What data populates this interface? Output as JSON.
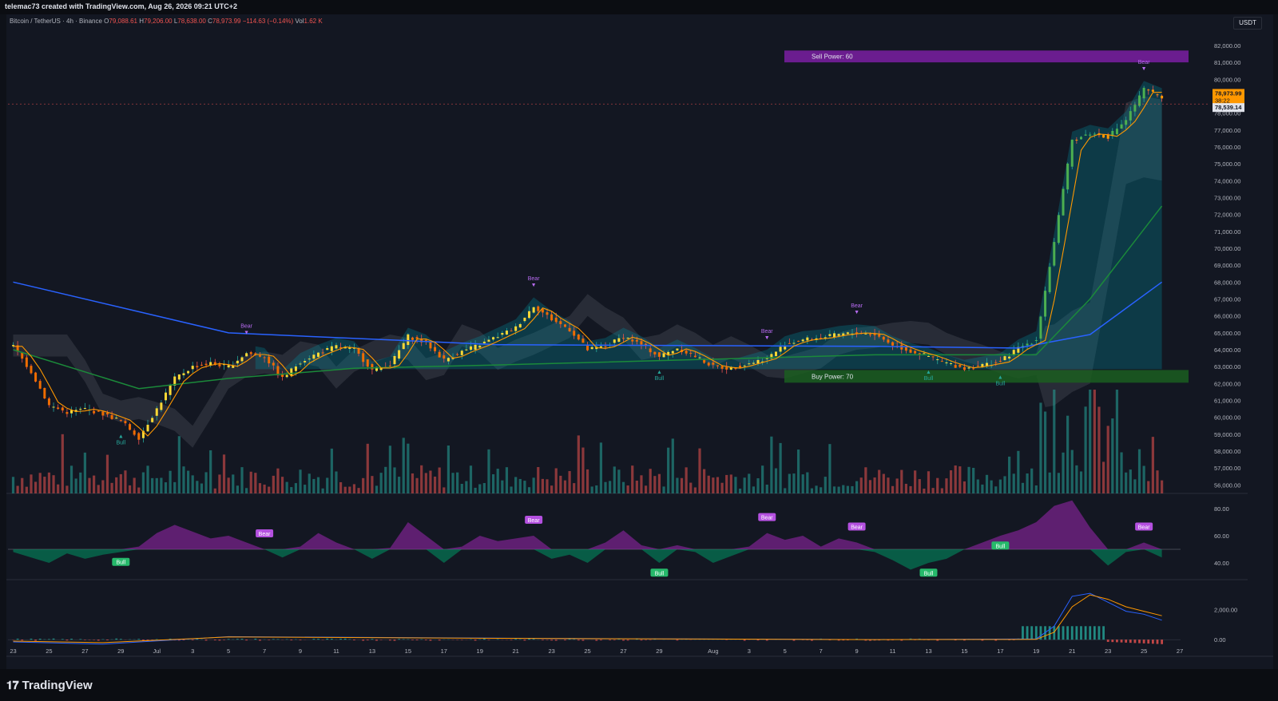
{
  "header": {
    "attribution": "telemac73 created with TradingView.com, Aug 26, 2026 09:21 UTC+2"
  },
  "symbol": {
    "name": "Bitcoin / TetherUS · 4h · Binance",
    "o_label": "O",
    "o": "79,088.61",
    "h_label": "H",
    "h": "79,206.00",
    "l_label": "L",
    "l": "78,638.00",
    "c_label": "C",
    "c": "78,973.99",
    "change": "−114.63 (−0.14%)",
    "vol_label": "Vol",
    "vol": "1.62 K"
  },
  "currency_button": "USDT",
  "brand": "TradingView",
  "chart_data": [
    {
      "type": "candlestick",
      "title": "Bitcoin / TetherUS · 4h · Binance",
      "ylim": [
        55500,
        82800
      ],
      "y_ticks": [
        "82,000.00",
        "81,000.00",
        "80,000.00",
        "79,000.00",
        "78,000.00",
        "77,000.00",
        "76,000.00",
        "75,000.00",
        "74,000.00",
        "73,000.00",
        "72,000.00",
        "71,000.00",
        "70,000.00",
        "69,000.00",
        "68,000.00",
        "67,000.00",
        "66,000.00",
        "65,000.00",
        "64,000.00",
        "63,000.00",
        "62,000.00",
        "61,000.00",
        "60,000.00",
        "59,000.00",
        "58,000.00",
        "57,000.00",
        "56,000.00"
      ],
      "x_ticks": [
        "23",
        "25",
        "27",
        "29",
        "Jul",
        "3",
        "5",
        "7",
        "9",
        "11",
        "13",
        "15",
        "17",
        "19",
        "21",
        "23",
        "25",
        "27",
        "29",
        "Aug",
        "3",
        "5",
        "7",
        "9",
        "11",
        "13",
        "15",
        "17",
        "19",
        "21",
        "23",
        "25",
        "27"
      ],
      "close_path": [
        [
          "Jun 23",
          64200
        ],
        [
          "Jun 24",
          62700
        ],
        [
          "Jun 25",
          60700
        ],
        [
          "Jun 26",
          60300
        ],
        [
          "Jun 27",
          60500
        ],
        [
          "Jun 28",
          60200
        ],
        [
          "Jun 29",
          59800
        ],
        [
          "Jun 30",
          58800
        ],
        [
          "Jul 1",
          60500
        ],
        [
          "Jul 2",
          62300
        ],
        [
          "Jul 3",
          63000
        ],
        [
          "Jul 4",
          63200
        ],
        [
          "Jul 5",
          63000
        ],
        [
          "Jul 6",
          63800
        ],
        [
          "Jul 7",
          63600
        ],
        [
          "Jul 8",
          62300
        ],
        [
          "Jul 9",
          63300
        ],
        [
          "Jul 10",
          63800
        ],
        [
          "Jul 11",
          64200
        ],
        [
          "Jul 12",
          64000
        ],
        [
          "Jul 13",
          62800
        ],
        [
          "Jul 14",
          63100
        ],
        [
          "Jul 15",
          64800
        ],
        [
          "Jul 16",
          64400
        ],
        [
          "Jul 17",
          63400
        ],
        [
          "Jul 18",
          63900
        ],
        [
          "Jul 19",
          64300
        ],
        [
          "Jul 20",
          64800
        ],
        [
          "Jul 21",
          65300
        ],
        [
          "Jul 22",
          66600
        ],
        [
          "Jul 23",
          65800
        ],
        [
          "Jul 24",
          65200
        ],
        [
          "Jul 25",
          64000
        ],
        [
          "Jul 26",
          64200
        ],
        [
          "Jul 27",
          64800
        ],
        [
          "Jul 28",
          64300
        ],
        [
          "Jul 29",
          63600
        ],
        [
          "Jul 30",
          64100
        ],
        [
          "Jul 31",
          63600
        ],
        [
          "Aug 1",
          63000
        ],
        [
          "Aug 2",
          62900
        ],
        [
          "Aug 3",
          63200
        ],
        [
          "Aug 4",
          63500
        ],
        [
          "Aug 5",
          64300
        ],
        [
          "Aug 6",
          64600
        ],
        [
          "Aug 7",
          64700
        ],
        [
          "Aug 8",
          64900
        ],
        [
          "Aug 9",
          65000
        ],
        [
          "Aug 10",
          64900
        ],
        [
          "Aug 11",
          64300
        ],
        [
          "Aug 12",
          63900
        ],
        [
          "Aug 13",
          63600
        ],
        [
          "Aug 14",
          63200
        ],
        [
          "Aug 15",
          62900
        ],
        [
          "Aug 16",
          63100
        ],
        [
          "Aug 17",
          63300
        ],
        [
          "Aug 18",
          64100
        ],
        [
          "Aug 19",
          64600
        ],
        [
          "Aug 20",
          70400
        ],
        [
          "Aug 21",
          76400
        ],
        [
          "Aug 22",
          76800
        ],
        [
          "Aug 23",
          76600
        ],
        [
          "Aug 24",
          77600
        ],
        [
          "Aug 25",
          79400
        ],
        [
          "Aug 26",
          78974
        ]
      ],
      "moving_averages": [
        {
          "name": "blue MA",
          "color": "#2962ff",
          "points": [
            [
              "Jun 23",
              68000
            ],
            [
              "Jul 5",
              65000
            ],
            [
              "Jul 20",
              64300
            ],
            [
              "Aug 10",
              64200
            ],
            [
              "Aug 18",
              64100
            ],
            [
              "Aug 22",
              64900
            ],
            [
              "Aug 26",
              68000
            ]
          ]
        },
        {
          "name": "green MA",
          "color": "#1b8a3a",
          "points": [
            [
              "Jun 23",
              64000
            ],
            [
              "Jun 30",
              61700
            ],
            [
              "Jul 5",
              62300
            ],
            [
              "Jul 12",
              62900
            ],
            [
              "Jul 20",
              63100
            ],
            [
              "Aug 10",
              63700
            ],
            [
              "Aug 19",
              63700
            ],
            [
              "Aug 22",
              67000
            ],
            [
              "Aug 26",
              72500
            ]
          ]
        }
      ],
      "last_price": "78,973.99",
      "countdown": "38:22",
      "marker_price": "78,539.14",
      "zones": [
        {
          "label": "Sell Power: 60",
          "from": 81000,
          "to": 81700,
          "color": "#7b1fa2"
        },
        {
          "label": "Buy Power: 70",
          "from": 62050,
          "to": 62800,
          "color": "#1b5e20"
        }
      ],
      "signals": [
        {
          "label": "Bear",
          "at": "Jul 6"
        },
        {
          "label": "Bear",
          "at": "Jul 22"
        },
        {
          "label": "Bear",
          "at": "Aug 4"
        },
        {
          "label": "Bear",
          "at": "Aug 9"
        },
        {
          "label": "Bear",
          "at": "Aug 25"
        },
        {
          "label": "Bull",
          "at": "Jun 29"
        },
        {
          "label": "Bull",
          "at": "Jul 29"
        },
        {
          "label": "Bull",
          "at": "Aug 13"
        },
        {
          "label": "Bull",
          "at": "Aug 17"
        }
      ]
    },
    {
      "type": "area",
      "title": "",
      "ylim": [
        30,
        90
      ],
      "y_ticks": [
        "80.00",
        "60.00",
        "40.00"
      ],
      "baseline": 50,
      "points": [
        [
          "Jun 23",
          48
        ],
        [
          "Jun 24",
          44
        ],
        [
          "Jun 25",
          40
        ],
        [
          "Jun 26",
          47
        ],
        [
          "Jun 27",
          43
        ],
        [
          "Jun 28",
          46
        ],
        [
          "Jun 29",
          48
        ],
        [
          "Jun 30",
          52
        ],
        [
          "Jul 1",
          62
        ],
        [
          "Jul 2",
          68
        ],
        [
          "Jul 3",
          63
        ],
        [
          "Jul 4",
          58
        ],
        [
          "Jul 5",
          60
        ],
        [
          "Jul 6",
          55
        ],
        [
          "Jul 7",
          50
        ],
        [
          "Jul 8",
          44
        ],
        [
          "Jul 9",
          52
        ],
        [
          "Jul 10",
          62
        ],
        [
          "Jul 11",
          55
        ],
        [
          "Jul 12",
          50
        ],
        [
          "Jul 13",
          43
        ],
        [
          "Jul 14",
          51
        ],
        [
          "Jul 15",
          70
        ],
        [
          "Jul 16",
          60
        ],
        [
          "Jul 17",
          40
        ],
        [
          "Jul 18",
          52
        ],
        [
          "Jul 19",
          60
        ],
        [
          "Jul 20",
          56
        ],
        [
          "Jul 21",
          58
        ],
        [
          "Jul 22",
          60
        ],
        [
          "Jul 23",
          43
        ],
        [
          "Jul 24",
          46
        ],
        [
          "Jul 25",
          40
        ],
        [
          "Jul 26",
          55
        ],
        [
          "Jul 27",
          64
        ],
        [
          "Jul 28",
          53
        ],
        [
          "Jul 29",
          40
        ],
        [
          "Jul 30",
          53
        ],
        [
          "Jul 31",
          48
        ],
        [
          "Aug 1",
          40
        ],
        [
          "Aug 2",
          45
        ],
        [
          "Aug 3",
          52
        ],
        [
          "Aug 4",
          62
        ],
        [
          "Aug 5",
          57
        ],
        [
          "Aug 6",
          60
        ],
        [
          "Aug 7",
          52
        ],
        [
          "Aug 8",
          58
        ],
        [
          "Aug 9",
          55
        ],
        [
          "Aug 10",
          48
        ],
        [
          "Aug 11",
          42
        ],
        [
          "Aug 12",
          35
        ],
        [
          "Aug 13",
          40
        ],
        [
          "Aug 14",
          43
        ],
        [
          "Aug 15",
          50
        ],
        [
          "Aug 16",
          55
        ],
        [
          "Aug 17",
          60
        ],
        [
          "Aug 18",
          64
        ],
        [
          "Aug 19",
          70
        ],
        [
          "Aug 20",
          82
        ],
        [
          "Aug 21",
          86
        ],
        [
          "Aug 22",
          66
        ],
        [
          "Aug 23",
          38
        ],
        [
          "Aug 24",
          48
        ],
        [
          "Aug 25",
          55
        ],
        [
          "Aug 26",
          44
        ]
      ],
      "signals": [
        {
          "label": "Bull",
          "at": "Jun 29"
        },
        {
          "label": "Bear",
          "at": "Jul 7"
        },
        {
          "label": "Bear",
          "at": "Jul 22"
        },
        {
          "label": "Bull",
          "at": "Jul 29"
        },
        {
          "label": "Bear",
          "at": "Aug 4"
        },
        {
          "label": "Bear",
          "at": "Aug 9"
        },
        {
          "label": "Bull",
          "at": "Aug 13"
        },
        {
          "label": "Bull",
          "at": "Aug 17"
        },
        {
          "label": "Bear",
          "at": "Aug 25"
        }
      ]
    },
    {
      "type": "line",
      "title": "",
      "ylim": [
        -900,
        3800
      ],
      "y_ticks": [
        "2,000.00",
        "0.00"
      ],
      "series": [
        {
          "color": "#2962ff",
          "points": [
            [
              "Jun 23",
              -150
            ],
            [
              "Jun 28",
              -300
            ],
            [
              "Jul 5",
              200
            ],
            [
              "Jul 20",
              100
            ],
            [
              "Aug 10",
              0
            ],
            [
              "Aug 19",
              50
            ],
            [
              "Aug 20",
              900
            ],
            [
              "Aug 21",
              2900
            ],
            [
              "Aug 22",
              3100
            ],
            [
              "Aug 23",
              2500
            ],
            [
              "Aug 24",
              1900
            ],
            [
              "Aug 25",
              1700
            ],
            [
              "Aug 26",
              1300
            ]
          ]
        },
        {
          "color": "#ff9800",
          "points": [
            [
              "Jun 23",
              -100
            ],
            [
              "Jun 28",
              -200
            ],
            [
              "Jul 5",
              180
            ],
            [
              "Jul 20",
              90
            ],
            [
              "Aug 10",
              0
            ],
            [
              "Aug 19",
              20
            ],
            [
              "Aug 20",
              500
            ],
            [
              "Aug 21",
              2200
            ],
            [
              "Aug 22",
              3000
            ],
            [
              "Aug 23",
              2700
            ],
            [
              "Aug 24",
              2200
            ],
            [
              "Aug 25",
              1900
            ],
            [
              "Aug 26",
              1600
            ]
          ]
        }
      ]
    }
  ]
}
